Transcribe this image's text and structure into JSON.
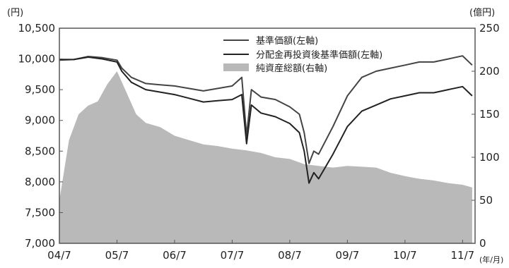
{
  "chart_data": {
    "type": "line",
    "left_unit": "(円)",
    "right_unit": "(億円)",
    "x_unit": "(年/月)",
    "x_ticks": [
      "04/7",
      "05/7",
      "06/7",
      "07/7",
      "08/7",
      "09/7",
      "10/7",
      "11/7"
    ],
    "y_left": {
      "lim": [
        7000,
        10500
      ],
      "ticks": [
        "7,000",
        "7,500",
        "8,000",
        "8,500",
        "9,000",
        "9,500",
        "10,000",
        "10,500"
      ]
    },
    "y_right": {
      "lim": [
        0,
        250
      ],
      "ticks": [
        "0",
        "50",
        "100",
        "150",
        "200",
        "250"
      ]
    },
    "grid": false,
    "legend_position": "top-center",
    "legend": [
      "基準価額(左軸)",
      "分配金再投資後基準価額(左軸)",
      "純資産総額(右軸)"
    ],
    "series": [
      {
        "name": "基準価額(左軸)",
        "axis": "left",
        "type": "line",
        "color": "#444444",
        "x": [
          "2004-07",
          "2004-10",
          "2005-01",
          "2005-04",
          "2005-07",
          "2005-08",
          "2005-10",
          "2006-01",
          "2006-04",
          "2006-07",
          "2006-10",
          "2007-01",
          "2007-04",
          "2007-07",
          "2007-09",
          "2007-10",
          "2007-11",
          "2008-01",
          "2008-04",
          "2008-07",
          "2008-09",
          "2008-10",
          "2008-11",
          "2008-12",
          "2009-01",
          "2009-04",
          "2009-07",
          "2009-10",
          "2010-01",
          "2010-04",
          "2010-07",
          "2010-10",
          "2011-01",
          "2011-04",
          "2011-07",
          "2011-09"
        ],
        "values": [
          9980,
          9990,
          10040,
          10020,
          9980,
          9850,
          9700,
          9600,
          9580,
          9560,
          9520,
          9480,
          9520,
          9560,
          9700,
          8750,
          9500,
          9380,
          9340,
          9220,
          9100,
          8800,
          8300,
          8500,
          8450,
          8900,
          9400,
          9700,
          9800,
          9850,
          9900,
          9950,
          9950,
          10000,
          10050,
          9900
        ]
      },
      {
        "name": "分配金再投資後基準価額(左軸)",
        "axis": "left",
        "type": "line",
        "color": "#222222",
        "x": [
          "2004-07",
          "2004-10",
          "2005-01",
          "2005-04",
          "2005-07",
          "2005-08",
          "2005-10",
          "2006-01",
          "2006-04",
          "2006-07",
          "2006-10",
          "2007-01",
          "2007-04",
          "2007-07",
          "2007-09",
          "2007-10",
          "2007-11",
          "2008-01",
          "2008-04",
          "2008-07",
          "2008-09",
          "2008-10",
          "2008-11",
          "2008-12",
          "2009-01",
          "2009-04",
          "2009-07",
          "2009-10",
          "2010-01",
          "2010-04",
          "2010-07",
          "2010-10",
          "2011-01",
          "2011-04",
          "2011-07",
          "2011-09"
        ],
        "values": [
          9990,
          9990,
          10030,
          10000,
          9950,
          9800,
          9620,
          9500,
          9460,
          9420,
          9360,
          9300,
          9320,
          9340,
          9420,
          8620,
          9250,
          9120,
          9060,
          8950,
          8800,
          8500,
          7980,
          8150,
          8050,
          8450,
          8900,
          9150,
          9250,
          9350,
          9400,
          9450,
          9450,
          9500,
          9550,
          9400
        ]
      },
      {
        "name": "純資産総額(右軸)",
        "axis": "right",
        "type": "area",
        "color": "#b9b9b9",
        "x": [
          "2004-07",
          "2004-09",
          "2004-11",
          "2005-01",
          "2005-03",
          "2005-05",
          "2005-07",
          "2005-09",
          "2005-11",
          "2006-01",
          "2006-04",
          "2006-07",
          "2006-10",
          "2007-01",
          "2007-04",
          "2007-07",
          "2007-10",
          "2008-01",
          "2008-04",
          "2008-07",
          "2008-10",
          "2009-01",
          "2009-04",
          "2009-07",
          "2009-10",
          "2010-01",
          "2010-04",
          "2010-07",
          "2010-10",
          "2011-01",
          "2011-04",
          "2011-07",
          "2011-09"
        ],
        "values": [
          50,
          120,
          150,
          160,
          165,
          185,
          200,
          175,
          150,
          140,
          135,
          125,
          120,
          115,
          113,
          110,
          108,
          105,
          100,
          98,
          92,
          90,
          88,
          90,
          89,
          88,
          82,
          78,
          75,
          73,
          70,
          68,
          65
        ]
      }
    ]
  }
}
